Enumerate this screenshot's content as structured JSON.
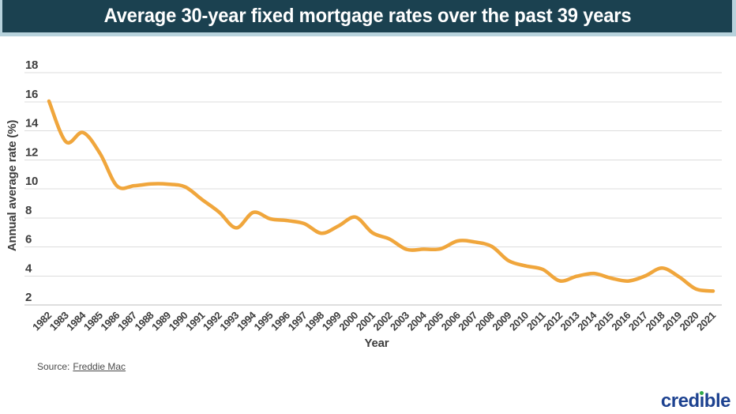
{
  "banner": {
    "title": "Average 30-year fixed mortgage rates over the past 39 years"
  },
  "chart_data": {
    "type": "line",
    "title": "Average 30-year fixed mortgage rates over the past 39 years",
    "xlabel": "Year",
    "ylabel": "Annual average rate (%)",
    "x": [
      1982,
      1983,
      1984,
      1985,
      1986,
      1987,
      1988,
      1989,
      1990,
      1991,
      1992,
      1993,
      1994,
      1995,
      1996,
      1997,
      1998,
      1999,
      2000,
      2001,
      2002,
      2003,
      2004,
      2005,
      2006,
      2007,
      2008,
      2009,
      2010,
      2011,
      2012,
      2013,
      2014,
      2015,
      2016,
      2017,
      2018,
      2019,
      2020,
      2021
    ],
    "values": [
      16.04,
      13.24,
      13.88,
      12.43,
      10.19,
      10.21,
      10.34,
      10.32,
      10.13,
      9.25,
      8.39,
      7.31,
      8.38,
      7.93,
      7.81,
      7.6,
      6.94,
      7.44,
      8.05,
      6.97,
      6.54,
      5.83,
      5.84,
      5.87,
      6.41,
      6.34,
      6.03,
      5.04,
      4.69,
      4.45,
      3.66,
      3.98,
      4.17,
      3.85,
      3.65,
      3.99,
      4.54,
      3.94,
      3.1,
      2.96
    ],
    "ylim": [
      2,
      18
    ],
    "yticks": [
      2,
      4,
      6,
      8,
      10,
      12,
      14,
      16,
      18
    ],
    "grid": true,
    "legend": false,
    "line_color": "#F0A63C",
    "smoothed": true
  },
  "source": {
    "prefix": "Source:",
    "link_text": "Freddie Mac"
  },
  "logo": {
    "text": "credible"
  },
  "colors": {
    "background": "#FFFFFF",
    "banner_bg": "#1B4150",
    "banner_border": "#B7D2DC",
    "title_text": "#FFFFFF",
    "line": "#F0A63C",
    "grid": "#DCDCDC",
    "axis": "#BDBDBD",
    "tick_text": "#3D3D3D",
    "source_text": "#4A4A4A",
    "logo_blue": "#1D4290",
    "logo_green": "#2FA84A"
  }
}
